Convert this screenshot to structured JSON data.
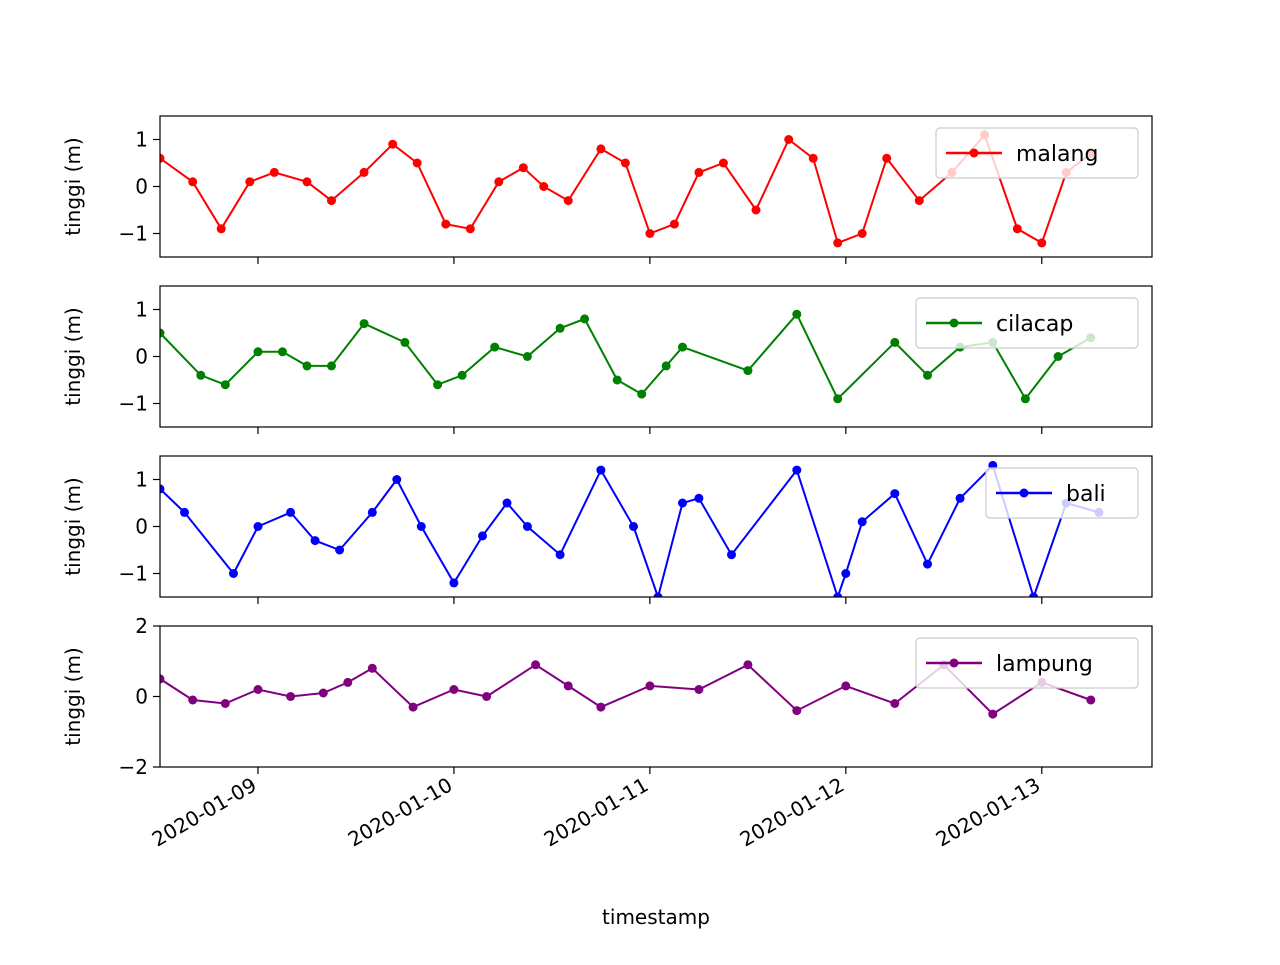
{
  "chart_data": {
    "type": "line",
    "layout": "4 stacked subplots with shared x-axis",
    "xlabel": "timestamp",
    "x_ticks": [
      "2020-01-09",
      "2020-01-10",
      "2020-01-11",
      "2020-01-12",
      "2020-01-13"
    ],
    "x_range": [
      "2020-01-08 12:00",
      "2020-01-13 13:30"
    ],
    "panels": [
      {
        "name": "malang",
        "color": "#ff0000",
        "ylabel": "tinggi (m)",
        "ylim": [
          -1.5,
          1.5
        ],
        "yticks": [
          1,
          0,
          -1
        ],
        "legend": "upper right",
        "series": [
          {
            "x": "2020-01-08 12:00",
            "y": 0.6
          },
          {
            "x": "2020-01-08 16:00",
            "y": 0.1
          },
          {
            "x": "2020-01-08 19:30",
            "y": -0.9
          },
          {
            "x": "2020-01-08 23:00",
            "y": 0.1
          },
          {
            "x": "2020-01-09 02:00",
            "y": 0.3
          },
          {
            "x": "2020-01-09 06:00",
            "y": 0.1
          },
          {
            "x": "2020-01-09 09:00",
            "y": -0.3
          },
          {
            "x": "2020-01-09 13:00",
            "y": 0.3
          },
          {
            "x": "2020-01-09 16:30",
            "y": 0.9
          },
          {
            "x": "2020-01-09 19:30",
            "y": 0.5
          },
          {
            "x": "2020-01-09 23:00",
            "y": -0.8
          },
          {
            "x": "2020-01-10 02:00",
            "y": -0.9
          },
          {
            "x": "2020-01-10 05:30",
            "y": 0.1
          },
          {
            "x": "2020-01-10 08:30",
            "y": 0.4
          },
          {
            "x": "2020-01-10 11:00",
            "y": 0.0
          },
          {
            "x": "2020-01-10 14:00",
            "y": -0.3
          },
          {
            "x": "2020-01-10 18:00",
            "y": 0.8
          },
          {
            "x": "2020-01-10 21:00",
            "y": 0.5
          },
          {
            "x": "2020-01-11 00:00",
            "y": -1.0
          },
          {
            "x": "2020-01-11 03:00",
            "y": -0.8
          },
          {
            "x": "2020-01-11 06:00",
            "y": 0.3
          },
          {
            "x": "2020-01-11 09:00",
            "y": 0.5
          },
          {
            "x": "2020-01-11 13:00",
            "y": -0.5
          },
          {
            "x": "2020-01-11 17:00",
            "y": 1.0
          },
          {
            "x": "2020-01-11 20:00",
            "y": 0.6
          },
          {
            "x": "2020-01-11 23:00",
            "y": -1.2
          },
          {
            "x": "2020-01-12 02:00",
            "y": -1.0
          },
          {
            "x": "2020-01-12 05:00",
            "y": 0.6
          },
          {
            "x": "2020-01-12 09:00",
            "y": -0.3
          },
          {
            "x": "2020-01-12 13:00",
            "y": 0.3
          },
          {
            "x": "2020-01-12 17:00",
            "y": 1.1
          },
          {
            "x": "2020-01-12 21:00",
            "y": -0.9
          },
          {
            "x": "2020-01-13 00:00",
            "y": -1.2
          },
          {
            "x": "2020-01-13 03:00",
            "y": 0.3
          },
          {
            "x": "2020-01-13 06:00",
            "y": 0.7
          }
        ]
      },
      {
        "name": "cilacap",
        "color": "#008000",
        "ylabel": "tinggi (m)",
        "ylim": [
          -1.5,
          1.5
        ],
        "yticks": [
          1,
          0,
          -1
        ],
        "legend": "upper right",
        "series": [
          {
            "x": "2020-01-08 12:00",
            "y": 0.5
          },
          {
            "x": "2020-01-08 17:00",
            "y": -0.4
          },
          {
            "x": "2020-01-08 20:00",
            "y": -0.6
          },
          {
            "x": "2020-01-09 00:00",
            "y": 0.1
          },
          {
            "x": "2020-01-09 03:00",
            "y": 0.1
          },
          {
            "x": "2020-01-09 06:00",
            "y": -0.2
          },
          {
            "x": "2020-01-09 09:00",
            "y": -0.2
          },
          {
            "x": "2020-01-09 13:00",
            "y": 0.7
          },
          {
            "x": "2020-01-09 18:00",
            "y": 0.3
          },
          {
            "x": "2020-01-09 22:00",
            "y": -0.6
          },
          {
            "x": "2020-01-10 01:00",
            "y": -0.4
          },
          {
            "x": "2020-01-10 05:00",
            "y": 0.2
          },
          {
            "x": "2020-01-10 09:00",
            "y": 0.0
          },
          {
            "x": "2020-01-10 13:00",
            "y": 0.6
          },
          {
            "x": "2020-01-10 16:00",
            "y": 0.8
          },
          {
            "x": "2020-01-10 20:00",
            "y": -0.5
          },
          {
            "x": "2020-01-10 23:00",
            "y": -0.8
          },
          {
            "x": "2020-01-11 02:00",
            "y": -0.2
          },
          {
            "x": "2020-01-11 04:00",
            "y": 0.2
          },
          {
            "x": "2020-01-11 12:00",
            "y": -0.3
          },
          {
            "x": "2020-01-11 18:00",
            "y": 0.9
          },
          {
            "x": "2020-01-11 23:00",
            "y": -0.9
          },
          {
            "x": "2020-01-12 06:00",
            "y": 0.3
          },
          {
            "x": "2020-01-12 10:00",
            "y": -0.4
          },
          {
            "x": "2020-01-12 14:00",
            "y": 0.2
          },
          {
            "x": "2020-01-12 18:00",
            "y": 0.3
          },
          {
            "x": "2020-01-12 22:00",
            "y": -0.9
          },
          {
            "x": "2020-01-13 02:00",
            "y": 0.0
          },
          {
            "x": "2020-01-13 06:00",
            "y": 0.4
          }
        ]
      },
      {
        "name": "bali",
        "color": "#0000ff",
        "ylabel": "tinggi (m)",
        "ylim": [
          -1.5,
          1.5
        ],
        "yticks": [
          1,
          0,
          -1
        ],
        "legend": "upper right",
        "series": [
          {
            "x": "2020-01-08 12:00",
            "y": 0.8
          },
          {
            "x": "2020-01-08 15:00",
            "y": 0.3
          },
          {
            "x": "2020-01-08 21:00",
            "y": -1.0
          },
          {
            "x": "2020-01-09 00:00",
            "y": 0.0
          },
          {
            "x": "2020-01-09 04:00",
            "y": 0.3
          },
          {
            "x": "2020-01-09 07:00",
            "y": -0.3
          },
          {
            "x": "2020-01-09 10:00",
            "y": -0.5
          },
          {
            "x": "2020-01-09 14:00",
            "y": 0.3
          },
          {
            "x": "2020-01-09 17:00",
            "y": 1.0
          },
          {
            "x": "2020-01-09 20:00",
            "y": 0.0
          },
          {
            "x": "2020-01-10 00:00",
            "y": -1.2
          },
          {
            "x": "2020-01-10 03:30",
            "y": -0.2
          },
          {
            "x": "2020-01-10 06:30",
            "y": 0.5
          },
          {
            "x": "2020-01-10 09:00",
            "y": 0.0
          },
          {
            "x": "2020-01-10 13:00",
            "y": -0.6
          },
          {
            "x": "2020-01-10 18:00",
            "y": 1.2
          },
          {
            "x": "2020-01-10 22:00",
            "y": 0.0
          },
          {
            "x": "2020-01-11 01:00",
            "y": -1.5
          },
          {
            "x": "2020-01-11 04:00",
            "y": 0.5
          },
          {
            "x": "2020-01-11 06:00",
            "y": 0.6
          },
          {
            "x": "2020-01-11 10:00",
            "y": -0.6
          },
          {
            "x": "2020-01-11 18:00",
            "y": 1.2
          },
          {
            "x": "2020-01-11 23:00",
            "y": -1.5
          },
          {
            "x": "2020-01-12 00:00",
            "y": -1.0
          },
          {
            "x": "2020-01-12 02:00",
            "y": 0.1
          },
          {
            "x": "2020-01-12 06:00",
            "y": 0.7
          },
          {
            "x": "2020-01-12 10:00",
            "y": -0.8
          },
          {
            "x": "2020-01-12 14:00",
            "y": 0.6
          },
          {
            "x": "2020-01-12 18:00",
            "y": 1.3
          },
          {
            "x": "2020-01-12 23:00",
            "y": -1.5
          },
          {
            "x": "2020-01-13 03:00",
            "y": 0.5
          },
          {
            "x": "2020-01-13 07:00",
            "y": 0.3
          }
        ]
      },
      {
        "name": "lampung",
        "color": "#800080",
        "ylabel": "tinggi (m)",
        "ylim": [
          -2,
          2
        ],
        "yticks": [
          2,
          0,
          -2
        ],
        "legend": "upper right",
        "series": [
          {
            "x": "2020-01-08 12:00",
            "y": 0.5
          },
          {
            "x": "2020-01-08 16:00",
            "y": -0.1
          },
          {
            "x": "2020-01-08 20:00",
            "y": -0.2
          },
          {
            "x": "2020-01-09 00:00",
            "y": 0.2
          },
          {
            "x": "2020-01-09 04:00",
            "y": 0.0
          },
          {
            "x": "2020-01-09 08:00",
            "y": 0.1
          },
          {
            "x": "2020-01-09 11:00",
            "y": 0.4
          },
          {
            "x": "2020-01-09 14:00",
            "y": 0.8
          },
          {
            "x": "2020-01-09 19:00",
            "y": -0.3
          },
          {
            "x": "2020-01-10 00:00",
            "y": 0.2
          },
          {
            "x": "2020-01-10 04:00",
            "y": 0.0
          },
          {
            "x": "2020-01-10 10:00",
            "y": 0.9
          },
          {
            "x": "2020-01-10 14:00",
            "y": 0.3
          },
          {
            "x": "2020-01-10 18:00",
            "y": -0.3
          },
          {
            "x": "2020-01-11 00:00",
            "y": 0.3
          },
          {
            "x": "2020-01-11 06:00",
            "y": 0.2
          },
          {
            "x": "2020-01-11 12:00",
            "y": 0.9
          },
          {
            "x": "2020-01-11 18:00",
            "y": -0.4
          },
          {
            "x": "2020-01-12 00:00",
            "y": 0.3
          },
          {
            "x": "2020-01-12 06:00",
            "y": -0.2
          },
          {
            "x": "2020-01-12 12:00",
            "y": 0.9
          },
          {
            "x": "2020-01-12 18:00",
            "y": -0.5
          },
          {
            "x": "2020-01-13 00:00",
            "y": 0.4
          },
          {
            "x": "2020-01-13 06:00",
            "y": -0.1
          }
        ]
      }
    ]
  }
}
